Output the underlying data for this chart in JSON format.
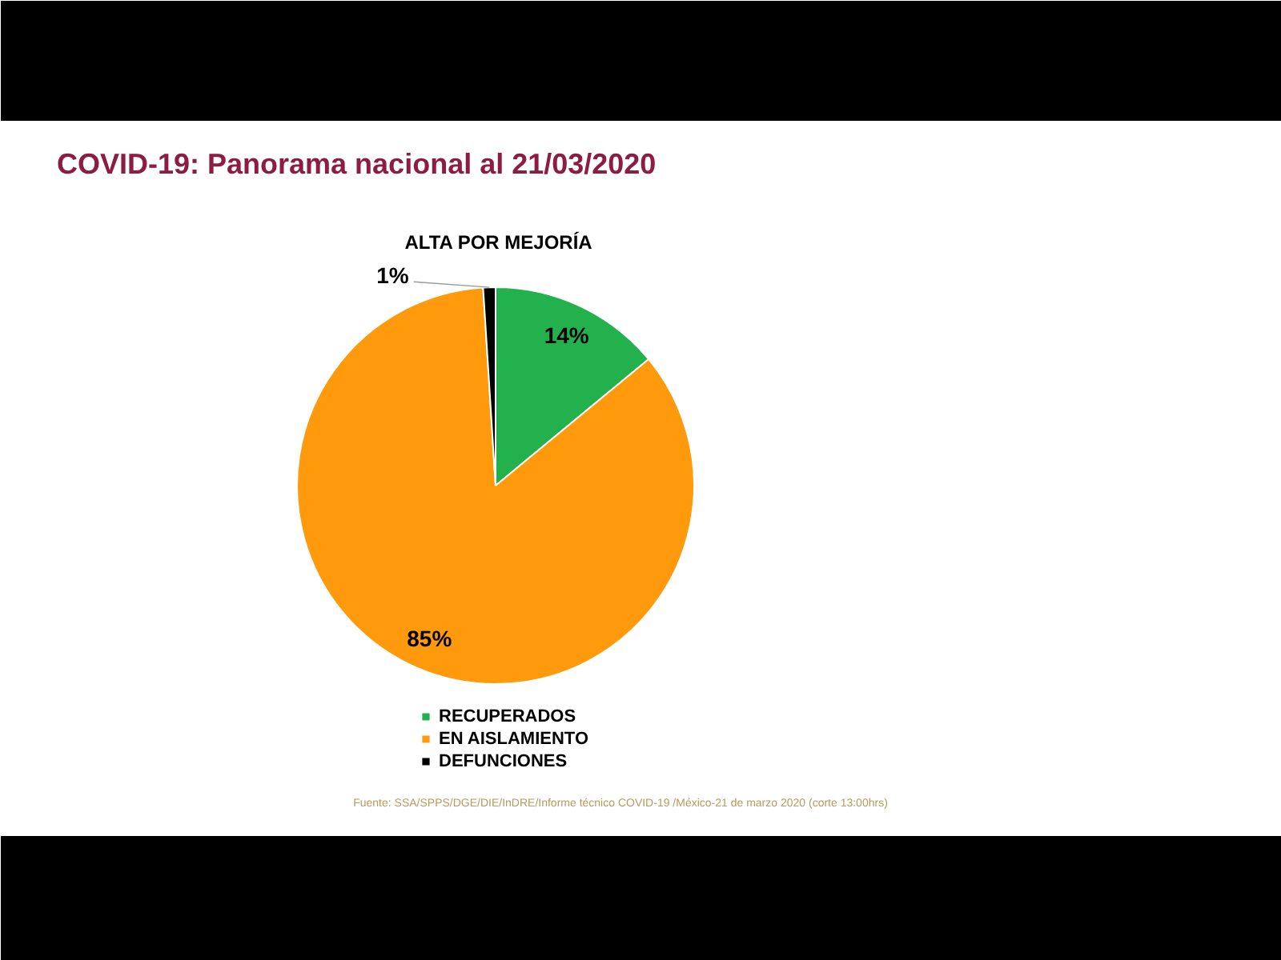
{
  "chart_data": {
    "type": "pie",
    "title": "COVID-19: Panorama nacional al 21/03/2020",
    "subtitle": "ALTA POR MEJORÍA",
    "categories": [
      "RECUPERADOS",
      "EN AISLAMIENTO",
      "DEFUNCIONES"
    ],
    "values": [
      14,
      85,
      1
    ],
    "colors": [
      "#22b14c",
      "#fe9a0c",
      "#000000"
    ],
    "value_labels": [
      "14%",
      "85%",
      "1%"
    ],
    "legend": "bottom",
    "annotations": [
      "Fuente: SSA/SPPS/DGE/DIE/InDRE/Informe técnico COVID-19 /México-21 de marzo 2020 (corte 13:00hrs)"
    ]
  }
}
